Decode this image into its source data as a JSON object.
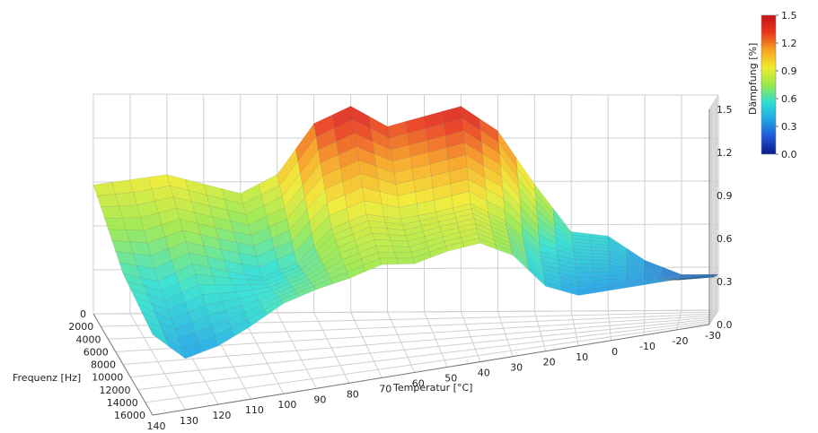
{
  "chart_data": {
    "type": "surface3d",
    "title": "",
    "xlabel": "Temperatur [°C]",
    "ylabel": "Frequenz [Hz]",
    "zlabel": "Dämpfung [%]",
    "x_ticks": [
      "140",
      "130",
      "120",
      "110",
      "100",
      "90",
      "80",
      "70",
      "60",
      "50",
      "40",
      "30",
      "20",
      "10",
      "0",
      "-10",
      "-20",
      "-30"
    ],
    "y_ticks": [
      "0",
      "2000",
      "4000",
      "6000",
      "8000",
      "10000",
      "12000",
      "14000",
      "16000"
    ],
    "z_ticks": [
      "0.0",
      "0.3",
      "0.6",
      "0.9",
      "1.2",
      "1.5"
    ],
    "colorbar_ticks": [
      "1.5",
      "1.2",
      "0.9",
      "0.6",
      "0.3",
      "0.0"
    ],
    "xlim": [
      140,
      -30
    ],
    "ylim": [
      0,
      16000
    ],
    "zlim": [
      0,
      1.5
    ],
    "grid": true,
    "colormap": [
      "#0a1a8c",
      "#1f55d6",
      "#1fa8e6",
      "#2fe0d0",
      "#9be84a",
      "#f2ea2e",
      "#f7a21d",
      "#e8361b",
      "#c4121a"
    ],
    "series": [
      {
        "y": 0,
        "x": [
          140,
          120,
          100,
          90,
          80,
          70,
          60,
          50,
          40,
          30,
          20,
          10,
          0,
          -10,
          -20
        ],
        "z": [
          0.88,
          0.95,
          0.82,
          0.95,
          1.3,
          1.42,
          1.28,
          1.35,
          1.42,
          1.25,
          0.88,
          0.55,
          0.52,
          0.35,
          0.25
        ]
      },
      {
        "y": 8000,
        "x": [
          140,
          130,
          120,
          110,
          100,
          90,
          80,
          70,
          60,
          50,
          40,
          30,
          20,
          10,
          0,
          -10,
          -20
        ],
        "z": [
          0.62,
          0.55,
          0.65,
          0.58,
          0.52,
          0.6,
          0.82,
          0.9,
          0.85,
          0.88,
          0.92,
          0.78,
          0.55,
          0.48,
          0.45,
          0.35,
          0.28
        ]
      },
      {
        "y": 16000,
        "x": [
          140,
          130,
          120,
          110,
          100,
          90,
          80,
          70,
          60,
          50,
          40,
          30,
          20,
          10
        ],
        "z": [
          0.55,
          0.35,
          0.4,
          0.5,
          0.62,
          0.68,
          0.72,
          0.78,
          0.75,
          0.8,
          0.82,
          0.7,
          0.45,
          0.35
        ]
      }
    ]
  }
}
